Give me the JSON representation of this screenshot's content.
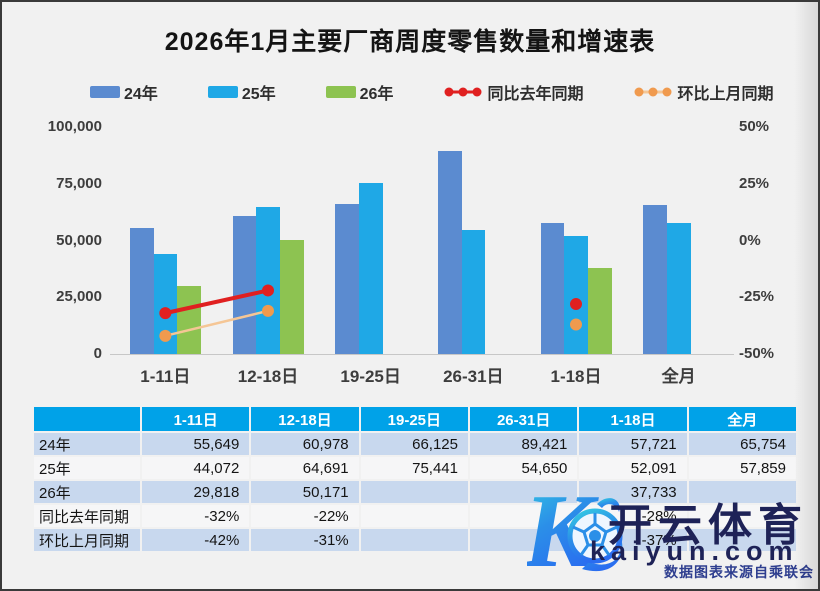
{
  "title": "2026年1月主要厂商周度零售数量和增速表",
  "legend": [
    {
      "label": "24年",
      "symbol": "bar",
      "color": "#5b8bd0"
    },
    {
      "label": "25年",
      "symbol": "bar",
      "color": "#1fa8e6"
    },
    {
      "label": "26年",
      "symbol": "bar",
      "color": "#8dc351"
    },
    {
      "label": "同比去年同期",
      "symbol": "line",
      "color": "#e02020",
      "line_color": "#e02020"
    },
    {
      "label": "环比上月同期",
      "symbol": "line",
      "color": "#f09a4e",
      "line_color": "#f5c695"
    }
  ],
  "chart_data": {
    "type": "bar+line combo",
    "title": "2026年1月主要厂商周度零售数量和增速表",
    "categories": [
      "1-11日",
      "12-18日",
      "19-25日",
      "26-31日",
      "1-18日",
      "全月"
    ],
    "series": [
      {
        "name": "24年",
        "type": "bar",
        "axis": "left",
        "color": "#5b8bd0",
        "values": [
          55649,
          60978,
          66125,
          89421,
          57721,
          65754
        ]
      },
      {
        "name": "25年",
        "type": "bar",
        "axis": "left",
        "color": "#1fa8e6",
        "values": [
          44072,
          64691,
          75441,
          54650,
          52091,
          57859
        ]
      },
      {
        "name": "26年",
        "type": "bar",
        "axis": "left",
        "color": "#8dc351",
        "values": [
          29818,
          50171,
          null,
          null,
          37733,
          null
        ]
      },
      {
        "name": "同比去年同期",
        "type": "line",
        "axis": "right",
        "color": "#e02020",
        "line_color": "#e02020",
        "line_width": 4,
        "values": [
          -32,
          -22,
          null,
          null,
          -28,
          null
        ]
      },
      {
        "name": "环比上月同期",
        "type": "line",
        "axis": "right",
        "color": "#f09a4e",
        "line_color": "#f5c695",
        "line_width": 2.5,
        "values": [
          -42,
          -31,
          null,
          null,
          -37,
          null
        ]
      }
    ],
    "left_axis": {
      "min": 0,
      "max": 100000,
      "ticks": [
        "100,000",
        "75,000",
        "50,000",
        "25,000",
        "0"
      ]
    },
    "right_axis": {
      "min": -50,
      "max": 50,
      "ticks": [
        "50%",
        "25%",
        "0%",
        "-25%",
        "-50%"
      ]
    },
    "grid": false,
    "legend_position": "top"
  },
  "table": {
    "header": [
      "",
      "1-11日",
      "12-18日",
      "19-25日",
      "26-31日",
      "1-18日",
      "全月"
    ],
    "rows": [
      {
        "label": "24年",
        "cells": [
          "55,649",
          "60,978",
          "66,125",
          "89,421",
          "57,721",
          "65,754"
        ]
      },
      {
        "label": "25年",
        "cells": [
          "44,072",
          "64,691",
          "75,441",
          "54,650",
          "52,091",
          "57,859"
        ]
      },
      {
        "label": "26年",
        "cells": [
          "29,818",
          "50,171",
          "",
          "",
          "37,733",
          ""
        ]
      },
      {
        "label": "同比去年同期",
        "cells": [
          "-32%",
          "-22%",
          "",
          "",
          "-28%",
          ""
        ]
      },
      {
        "label": "环比上月同期",
        "cells": [
          "-42%",
          "-31%",
          "",
          "",
          "-37%",
          ""
        ]
      }
    ]
  },
  "watermark": {
    "brand": "开云体育",
    "domain": "kaiyun.com",
    "note": "数据图表来源自乘联会"
  },
  "colors": {
    "background": "#f1f1f1",
    "table_header": "#00a2e8",
    "table_band": "#c8d8ee",
    "table_band_alt": "#f6f6f7",
    "axis_text": "#3d3d3d",
    "watermark_text": "#1e2257"
  }
}
